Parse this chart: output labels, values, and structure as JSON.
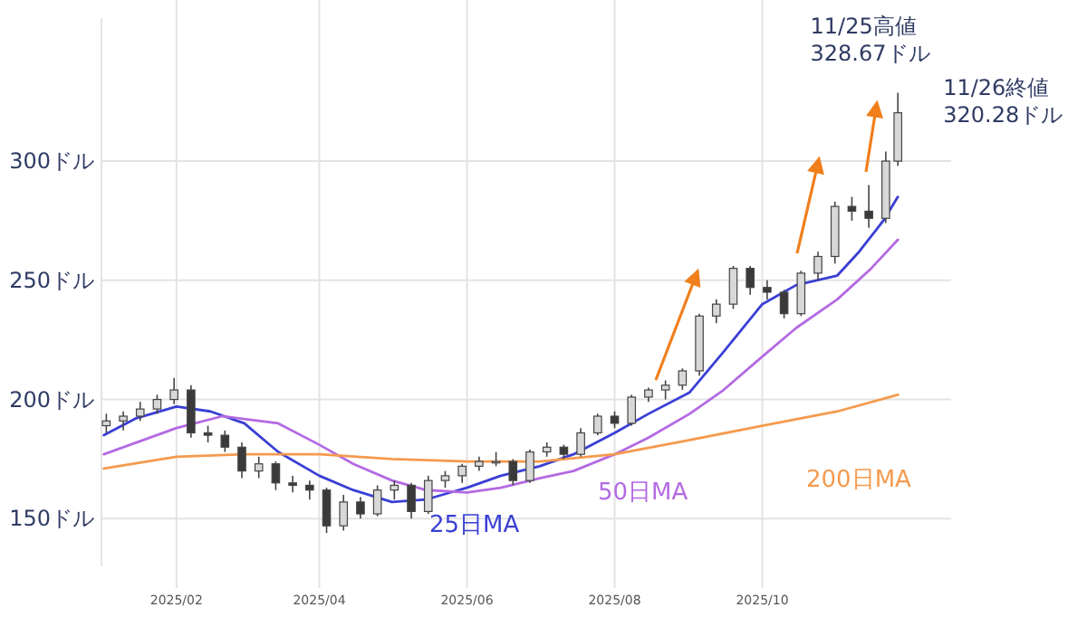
{
  "chart_data": {
    "type": "candlestick",
    "x": [
      "2025-01-03",
      "2025-01-10",
      "2025-01-17",
      "2025-01-24",
      "2025-01-31",
      "2025-02-07",
      "2025-02-14",
      "2025-02-21",
      "2025-02-28",
      "2025-03-07",
      "2025-03-14",
      "2025-03-21",
      "2025-03-28",
      "2025-04-04",
      "2025-04-11",
      "2025-04-18",
      "2025-04-25",
      "2025-05-02",
      "2025-05-09",
      "2025-05-16",
      "2025-05-23",
      "2025-05-30",
      "2025-06-06",
      "2025-06-13",
      "2025-06-20",
      "2025-06-27",
      "2025-07-04",
      "2025-07-11",
      "2025-07-18",
      "2025-07-25",
      "2025-08-01",
      "2025-08-08",
      "2025-08-15",
      "2025-08-22",
      "2025-08-29",
      "2025-09-05",
      "2025-09-12",
      "2025-09-19",
      "2025-09-26",
      "2025-10-03",
      "2025-10-10",
      "2025-10-17",
      "2025-10-24",
      "2025-10-31",
      "2025-11-07",
      "2025-11-14",
      "2025-11-21",
      "2025-11-26"
    ],
    "ohlc": [
      [
        189,
        194,
        186,
        191
      ],
      [
        191,
        195,
        187,
        193
      ],
      [
        193,
        199,
        191,
        196
      ],
      [
        196,
        202,
        194,
        200
      ],
      [
        200,
        209,
        198,
        204
      ],
      [
        204,
        206,
        184,
        186
      ],
      [
        186,
        189,
        182,
        185
      ],
      [
        185,
        187,
        178,
        180
      ],
      [
        180,
        182,
        167,
        170
      ],
      [
        170,
        176,
        167,
        173
      ],
      [
        173,
        174,
        162,
        165
      ],
      [
        165,
        168,
        161,
        164
      ],
      [
        164,
        166,
        158,
        162
      ],
      [
        162,
        163,
        144,
        147
      ],
      [
        147,
        160,
        145,
        157
      ],
      [
        157,
        159,
        150,
        152
      ],
      [
        152,
        164,
        151,
        162
      ],
      [
        162,
        166,
        158,
        164
      ],
      [
        164,
        165,
        150,
        153
      ],
      [
        153,
        168,
        152,
        166
      ],
      [
        166,
        170,
        163,
        168
      ],
      [
        168,
        173,
        165,
        172
      ],
      [
        172,
        176,
        170,
        174
      ],
      [
        174,
        178,
        172,
        174
      ],
      [
        174,
        175,
        164,
        166
      ],
      [
        166,
        179,
        165,
        178
      ],
      [
        178,
        182,
        176,
        180
      ],
      [
        180,
        181,
        175,
        177
      ],
      [
        177,
        188,
        176,
        186
      ],
      [
        186,
        194,
        185,
        193
      ],
      [
        193,
        195,
        188,
        190
      ],
      [
        190,
        202,
        189,
        201
      ],
      [
        201,
        205,
        199,
        204
      ],
      [
        204,
        208,
        200,
        206
      ],
      [
        206,
        213,
        204,
        212
      ],
      [
        212,
        236,
        210,
        235
      ],
      [
        235,
        242,
        232,
        240
      ],
      [
        240,
        256,
        238,
        255
      ],
      [
        255,
        256,
        244,
        247
      ],
      [
        247,
        250,
        242,
        245
      ],
      [
        245,
        246,
        234,
        236
      ],
      [
        236,
        254,
        235,
        253
      ],
      [
        253,
        262,
        250,
        260
      ],
      [
        260,
        283,
        257,
        281
      ],
      [
        281,
        285,
        275,
        279
      ],
      [
        279,
        290,
        272,
        276
      ],
      [
        276,
        304,
        274,
        300
      ],
      [
        300,
        328.67,
        298,
        320.28
      ]
    ],
    "series": [
      {
        "name": "25日MA",
        "type": "line",
        "color": "#3a3fd4",
        "x": [
          "2025-01-02",
          "2025-01-15",
          "2025-02-01",
          "2025-02-15",
          "2025-03-01",
          "2025-03-15",
          "2025-04-01",
          "2025-04-15",
          "2025-05-01",
          "2025-05-15",
          "2025-06-01",
          "2025-06-15",
          "2025-07-01",
          "2025-07-15",
          "2025-08-01",
          "2025-08-15",
          "2025-09-01",
          "2025-09-15",
          "2025-10-01",
          "2025-10-15",
          "2025-11-01",
          "2025-11-10",
          "2025-11-20",
          "2025-11-26"
        ],
        "values": [
          185,
          192,
          197,
          195,
          190,
          178,
          168,
          162,
          157,
          158,
          163,
          168,
          172,
          177,
          186,
          194,
          203,
          220,
          240,
          248,
          252,
          262,
          275,
          285
        ]
      },
      {
        "name": "50日MA",
        "type": "line",
        "color": "#b36ae2",
        "x": [
          "2025-01-02",
          "2025-02-01",
          "2025-02-20",
          "2025-03-15",
          "2025-04-01",
          "2025-04-15",
          "2025-05-01",
          "2025-05-15",
          "2025-06-01",
          "2025-06-15",
          "2025-07-01",
          "2025-07-15",
          "2025-08-01",
          "2025-08-15",
          "2025-09-01",
          "2025-09-15",
          "2025-10-01",
          "2025-10-15",
          "2025-11-01",
          "2025-11-15",
          "2025-11-26"
        ],
        "values": [
          177,
          188,
          193,
          190,
          181,
          173,
          166,
          162,
          161,
          163,
          167,
          170,
          177,
          184,
          194,
          204,
          218,
          230,
          242,
          255,
          267
        ]
      },
      {
        "name": "200日MA",
        "type": "line",
        "color": "#f59a4e",
        "x": [
          "2025-01-02",
          "2025-02-01",
          "2025-03-01",
          "2025-04-01",
          "2025-05-01",
          "2025-06-01",
          "2025-07-01",
          "2025-08-01",
          "2025-09-01",
          "2025-10-01",
          "2025-11-01",
          "2025-11-26"
        ],
        "values": [
          171,
          176,
          177,
          177,
          175,
          174,
          174,
          177,
          183,
          189,
          195,
          202
        ]
      }
    ],
    "annotations": [
      {
        "text": "11/25高値 328.67ドル",
        "x": "2025-11-25",
        "y": 328.67
      },
      {
        "text": "11/26終値 320.28ドル",
        "x": "2025-11-26",
        "y": 320.28
      }
    ],
    "xlim": [
      "2025-01-01",
      "2025-12-18"
    ],
    "xticks": [
      {
        "value": "2025-02-01",
        "label": "2025/02"
      },
      {
        "value": "2025-04-01",
        "label": "2025/04"
      },
      {
        "value": "2025-06-01",
        "label": "2025/06"
      },
      {
        "value": "2025-08-01",
        "label": "2025/08"
      },
      {
        "value": "2025-10-01",
        "label": "2025/10"
      }
    ],
    "ylim": [
      130,
      360
    ],
    "yticks": [
      {
        "value": 150,
        "label": "150ドル"
      },
      {
        "value": 200,
        "label": "200ドル"
      },
      {
        "value": 250,
        "label": "250ドル"
      },
      {
        "value": 300,
        "label": "300ドル"
      }
    ],
    "grid": true,
    "legend": false,
    "marker": "none",
    "line_style": "solid"
  }
}
